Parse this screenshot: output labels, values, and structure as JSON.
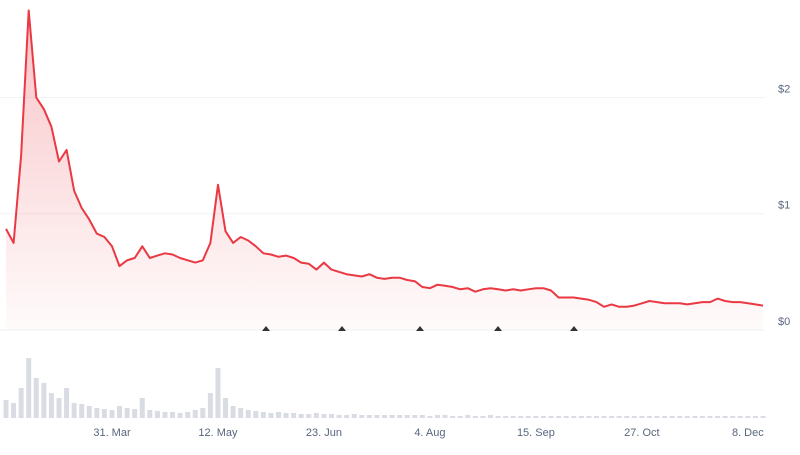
{
  "chart_data": {
    "type": "line",
    "categories": [
      null,
      null,
      null,
      null,
      null,
      null,
      null,
      null,
      null,
      null,
      null,
      null,
      null,
      null,
      "31. Mar",
      null,
      null,
      null,
      null,
      null,
      null,
      null,
      null,
      null,
      null,
      null,
      null,
      null,
      "12. May",
      null,
      null,
      null,
      null,
      null,
      null,
      null,
      null,
      null,
      null,
      null,
      null,
      null,
      "23. Jun",
      null,
      null,
      null,
      null,
      null,
      null,
      null,
      null,
      null,
      null,
      null,
      null,
      null,
      "4. Aug",
      null,
      null,
      null,
      null,
      null,
      null,
      null,
      null,
      null,
      null,
      null,
      null,
      null,
      "15. Sep",
      null,
      null,
      null,
      null,
      null,
      null,
      null,
      null,
      null,
      null,
      null,
      null,
      null,
      "27. Oct",
      null,
      null,
      null,
      null,
      null,
      null,
      null,
      null,
      null,
      null,
      null,
      null,
      null,
      "8. Dec",
      null,
      null
    ],
    "series": [
      {
        "color": "#ea3943",
        "values": [
          0.87,
          0.75,
          1.5,
          2.75,
          2.0,
          1.9,
          1.75,
          1.45,
          1.55,
          1.2,
          1.05,
          0.95,
          0.83,
          0.8,
          0.72,
          0.55,
          0.6,
          0.62,
          0.72,
          0.62,
          0.64,
          0.66,
          0.65,
          0.62,
          0.6,
          0.58,
          0.6,
          0.75,
          1.25,
          0.85,
          0.75,
          0.8,
          0.77,
          0.72,
          0.66,
          0.65,
          0.63,
          0.64,
          0.62,
          0.58,
          0.57,
          0.52,
          0.58,
          0.52,
          0.5,
          0.48,
          0.47,
          0.46,
          0.48,
          0.45,
          0.44,
          0.45,
          0.45,
          0.43,
          0.42,
          0.37,
          0.36,
          0.39,
          0.38,
          0.37,
          0.35,
          0.36,
          0.33,
          0.35,
          0.36,
          0.35,
          0.34,
          0.35,
          0.34,
          0.35,
          0.36,
          0.36,
          0.34,
          0.28,
          0.28,
          0.28,
          0.27,
          0.26,
          0.24,
          0.2,
          0.22,
          0.2,
          0.2,
          0.21,
          0.23,
          0.25,
          0.24,
          0.23,
          0.23,
          0.23,
          0.22,
          0.23,
          0.24,
          0.24,
          0.27,
          0.25,
          0.24,
          0.24,
          0.23,
          0.22,
          0.21
        ]
      }
    ],
    "volume": {
      "color": "#d9dce3",
      "values": [
        18,
        15,
        30,
        60,
        40,
        35,
        25,
        20,
        30,
        15,
        14,
        12,
        10,
        9,
        8,
        12,
        10,
        9,
        20,
        8,
        7,
        6,
        6,
        5,
        6,
        8,
        10,
        25,
        50,
        20,
        12,
        10,
        8,
        7,
        6,
        5,
        6,
        5,
        5,
        4,
        4,
        5,
        4,
        4,
        3,
        3,
        4,
        3,
        3,
        3,
        3,
        3,
        3,
        3,
        3,
        3,
        2,
        3,
        3,
        2,
        2,
        3,
        2,
        2,
        3,
        2,
        2,
        2,
        2,
        2,
        2,
        2,
        2,
        2,
        2,
        2,
        2,
        2,
        2,
        2,
        2,
        2,
        2,
        2,
        2,
        2,
        2,
        2,
        2,
        2,
        2,
        2,
        2,
        2,
        2,
        2,
        2,
        2,
        2,
        2,
        2
      ]
    },
    "ylim": [
      0,
      2.84
    ],
    "yticks": [
      {
        "value": 0,
        "label": "$0"
      },
      {
        "value": 1,
        "label": "$1"
      },
      {
        "value": 2,
        "label": "$2"
      }
    ],
    "grid": true
  }
}
